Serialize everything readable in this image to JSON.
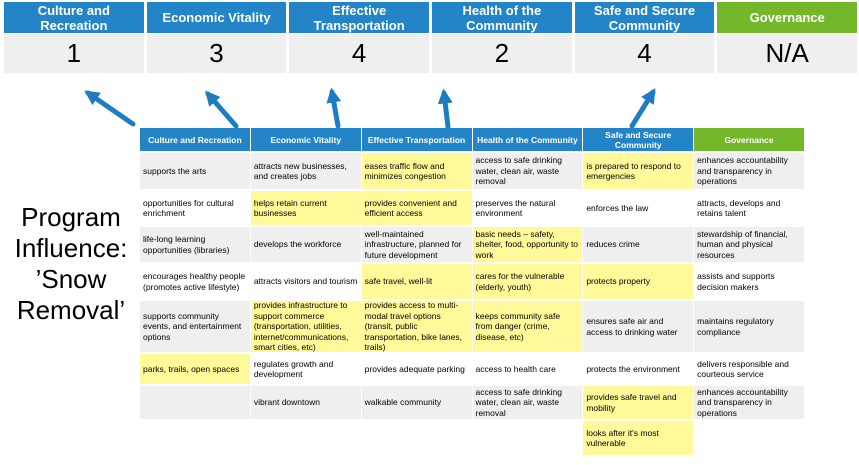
{
  "program_influence": {
    "label": "Program Influence: ’Snow Removal’"
  },
  "colors": {
    "header_blue": "#2385C7",
    "governance_green": "#74B72B",
    "highlight_yellow": "#FFF999",
    "band_gray": "#EFEFEF",
    "arrow_blue": "#1E7CC2"
  },
  "summary_table": {
    "columns": [
      {
        "label": "Culture and Recreation",
        "score": "1"
      },
      {
        "label": "Economic Vitality",
        "score": "3"
      },
      {
        "label": "Effective Transportation",
        "score": "4"
      },
      {
        "label": "Health of the Community",
        "score": "2"
      },
      {
        "label": "Safe and Secure Community",
        "score": "4"
      },
      {
        "label": "Governance",
        "score": "N/A"
      }
    ]
  },
  "matrix": {
    "headers": [
      "Culture and Recreation",
      "Economic Vitality",
      "Effective Transportation",
      "Health of the Community",
      "Safe and Secure Community",
      "Governance"
    ],
    "rows": [
      [
        {
          "text": "supports the arts",
          "highlight": false
        },
        {
          "text": "attracts new businesses, and creates jobs",
          "highlight": false
        },
        {
          "text": "eases traffic flow and minimizes congestion",
          "highlight": true
        },
        {
          "text": "access to safe drinking water, clean air, waste removal",
          "highlight": false
        },
        {
          "text": "is prepared to respond to emergencies",
          "highlight": true
        },
        {
          "text": "enhances accountability and transparency in operations",
          "highlight": false
        }
      ],
      [
        {
          "text": "opportunities for cultural enrichment",
          "highlight": false
        },
        {
          "text": "helps retain current businesses",
          "highlight": true
        },
        {
          "text": "provides convenient and efficient access",
          "highlight": true
        },
        {
          "text": "preserves the natural environment",
          "highlight": false
        },
        {
          "text": "enforces the law",
          "highlight": false
        },
        {
          "text": "attracts, develops and retains talent",
          "highlight": false
        }
      ],
      [
        {
          "text": "life-long learning opportunities (libraries)",
          "highlight": false
        },
        {
          "text": "develops the workforce",
          "highlight": false
        },
        {
          "text": "well-maintained infrastructure, planned for future development",
          "highlight": false
        },
        {
          "text": "basic needs – safety, shelter, food, opportunity to work",
          "highlight": true
        },
        {
          "text": "reduces crime",
          "highlight": false
        },
        {
          "text": "stewardship of financial, human and physical resources",
          "highlight": false
        }
      ],
      [
        {
          "text": "encourages healthy people (promotes active lifestyle)",
          "highlight": false
        },
        {
          "text": "attracts visitors and tourism",
          "highlight": false
        },
        {
          "text": "safe travel, well-lit",
          "highlight": true
        },
        {
          "text": "cares for the vulnerable (elderly, youth)",
          "highlight": true
        },
        {
          "text": "protects property",
          "highlight": true
        },
        {
          "text": "assists and supports decision makers",
          "highlight": false
        }
      ],
      [
        {
          "text": "supports community events, and entertainment options",
          "highlight": false
        },
        {
          "text": "provides infrastructure to support commerce (transportation, utilities, internet/communications, smart cities, etc)",
          "highlight": true
        },
        {
          "text": "provides access to multi-modal travel options (transit, public transportation, bike lanes, trails)",
          "highlight": true
        },
        {
          "text": "keeps community safe from danger (crime, disease, etc)",
          "highlight": true
        },
        {
          "text": "ensures safe air and access to drinking water",
          "highlight": false
        },
        {
          "text": "maintains regulatory compliance",
          "highlight": false
        }
      ],
      [
        {
          "text": "parks, trails, open spaces",
          "highlight": true
        },
        {
          "text": "regulates growth and development",
          "highlight": false
        },
        {
          "text": "provides adequate parking",
          "highlight": false
        },
        {
          "text": "access to health care",
          "highlight": false
        },
        {
          "text": "protects the environment",
          "highlight": false
        },
        {
          "text": "delivers responsible and courteous service",
          "highlight": false
        }
      ],
      [
        {
          "text": "",
          "highlight": false
        },
        {
          "text": "vibrant downtown",
          "highlight": false
        },
        {
          "text": "walkable community",
          "highlight": false
        },
        {
          "text": "access to safe drinking water, clean air, waste removal",
          "highlight": false
        },
        {
          "text": "provides safe travel and mobility",
          "highlight": true
        },
        {
          "text": "enhances accountability and transparency in operations",
          "highlight": false
        }
      ],
      [
        {
          "text": "",
          "highlight": false
        },
        {
          "text": "",
          "highlight": false
        },
        {
          "text": "",
          "highlight": false
        },
        {
          "text": "",
          "highlight": false
        },
        {
          "text": "looks after it's most vulnerable",
          "highlight": true
        },
        {
          "text": "",
          "highlight": false
        }
      ]
    ]
  }
}
